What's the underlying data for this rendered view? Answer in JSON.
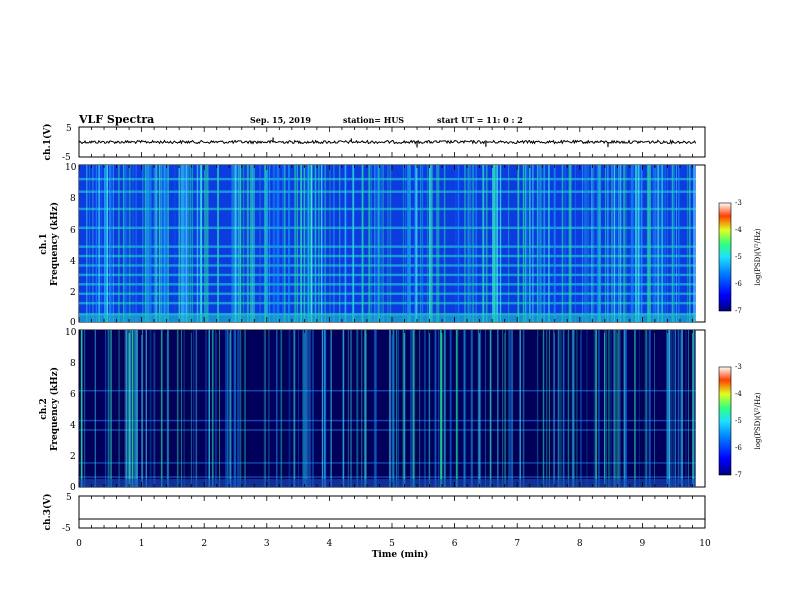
{
  "header": {
    "title": "VLF Spectra",
    "date": "Sep. 15, 2019",
    "station": "station= HUS",
    "start_ut": "start  UT =   11: 0  : 2"
  },
  "colors": {
    "spectrogram_low": "#00007f",
    "spectrogram_mid": "#0a7dff",
    "spectrogram_high": "#22e8b0",
    "waveform": "#000000"
  },
  "chart_data": [
    {
      "type": "line",
      "panel": "ch1-waveform",
      "ylabel": "ch.1(V)",
      "ylim": [
        -5,
        5
      ],
      "yticks": [
        "5",
        "-5"
      ],
      "xlim": [
        0,
        10
      ],
      "baseline_v": 0,
      "spikes": [
        {
          "t": 3.1,
          "v": 1.5
        },
        {
          "t": 4.35,
          "v": 1.2
        },
        {
          "t": 5.4,
          "v": -1.8
        },
        {
          "t": 6.5,
          "v": -1.6
        },
        {
          "t": 8.45,
          "v": -1.7
        }
      ]
    },
    {
      "type": "heatmap",
      "panel": "ch1-spectrogram",
      "ylabel_line1": "ch.1",
      "ylabel_line2": "Frequency (kHz)",
      "ylim": [
        0,
        10
      ],
      "yticks": [
        "0",
        "2",
        "4",
        "6",
        "8",
        "10"
      ],
      "xlim": [
        0,
        9.85
      ],
      "colorbar": {
        "label": "log(PSD)(V²/Hz)",
        "range": [
          -7,
          -3
        ],
        "ticks": [
          "-3",
          "-4",
          "-5",
          "-6",
          "-7"
        ]
      }
    },
    {
      "type": "heatmap",
      "panel": "ch2-spectrogram",
      "ylabel_line1": "ch.2",
      "ylabel_line2": "Frequency (kHz)",
      "ylim": [
        0,
        10
      ],
      "yticks": [
        "0",
        "2",
        "4",
        "6",
        "8",
        "10"
      ],
      "xlim": [
        0,
        9.85
      ],
      "colorbar": {
        "label": "log(PSD)(V²/Hz)",
        "range": [
          -7,
          -3
        ],
        "ticks": [
          "-3",
          "-4",
          "-5",
          "-6",
          "-7"
        ]
      }
    },
    {
      "type": "line",
      "panel": "ch3-waveform",
      "ylabel": "ch.3(V)",
      "ylim": [
        -5,
        5
      ],
      "yticks": [
        "5",
        "-5"
      ],
      "xlim": [
        0,
        10
      ],
      "baseline_v": -2.2
    }
  ],
  "xaxis": {
    "label": "Time (min)",
    "range": [
      0,
      10
    ],
    "ticks": [
      "0",
      "1",
      "2",
      "3",
      "4",
      "5",
      "6",
      "7",
      "8",
      "9",
      "10"
    ]
  }
}
